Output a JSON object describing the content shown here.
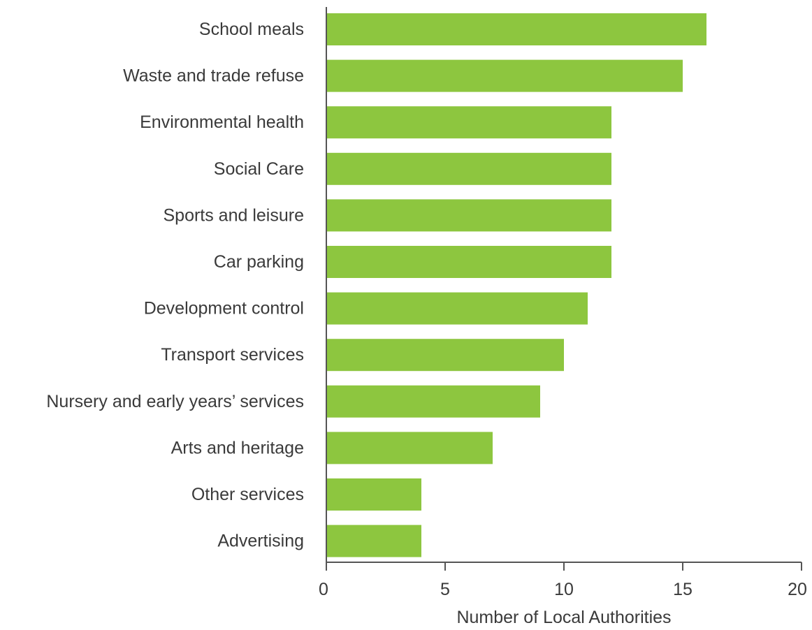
{
  "chart_data": {
    "type": "bar",
    "orientation": "horizontal",
    "categories": [
      "School meals",
      "Waste and trade refuse",
      "Environmental health",
      "Social Care",
      "Sports and leisure",
      "Car parking",
      "Development control",
      "Transport services",
      "Nursery and early years’ services",
      "Arts and heritage",
      "Other services",
      "Advertising"
    ],
    "values": [
      16,
      15,
      12,
      12,
      12,
      12,
      11,
      10,
      9,
      7,
      4,
      4
    ],
    "xlabel": "Number of Local Authorities",
    "ylabel": "",
    "xlim": [
      0,
      20
    ],
    "xticks": [
      0,
      5,
      10,
      15,
      20
    ],
    "grid": false,
    "legend": "none",
    "colors": {
      "bar": "#8dc63f",
      "axis": "#555555",
      "text": "#3a3a3a"
    }
  }
}
